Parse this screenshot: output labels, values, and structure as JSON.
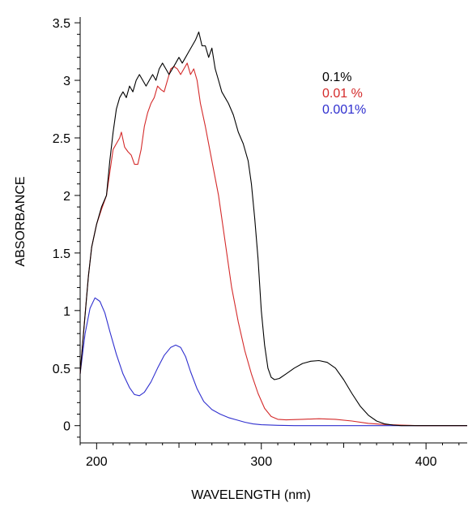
{
  "chart_data": {
    "type": "line",
    "title": "",
    "xlabel": "WAVELENGTH (nm)",
    "ylabel": "ABSORBANCE",
    "xlim": [
      190,
      425
    ],
    "ylim": [
      -0.15,
      3.55
    ],
    "x_ticks": [
      200,
      300,
      400
    ],
    "y_ticks": [
      0,
      0.5,
      1,
      1.5,
      2,
      2.5,
      3,
      3.5
    ],
    "x_tick_labels": [
      "200",
      "300",
      "400"
    ],
    "y_tick_labels": [
      "0",
      "0.5",
      "1",
      "1.5",
      "2",
      "2.5",
      "3",
      "3.5"
    ],
    "grid": false,
    "legend_position": "top-right",
    "series": [
      {
        "name": "0.1%",
        "color": "#000000",
        "points": [
          [
            190,
            0.45
          ],
          [
            192,
            0.8
          ],
          [
            195,
            1.3
          ],
          [
            197,
            1.55
          ],
          [
            200,
            1.75
          ],
          [
            203,
            1.9
          ],
          [
            206,
            2.0
          ],
          [
            208,
            2.3
          ],
          [
            210,
            2.55
          ],
          [
            212,
            2.75
          ],
          [
            214,
            2.85
          ],
          [
            216,
            2.9
          ],
          [
            218,
            2.85
          ],
          [
            220,
            2.95
          ],
          [
            222,
            2.9
          ],
          [
            224,
            3.0
          ],
          [
            226,
            3.05
          ],
          [
            228,
            3.0
          ],
          [
            230,
            2.95
          ],
          [
            232,
            3.0
          ],
          [
            234,
            3.05
          ],
          [
            236,
            3.0
          ],
          [
            238,
            3.1
          ],
          [
            240,
            3.15
          ],
          [
            242,
            3.1
          ],
          [
            244,
            3.05
          ],
          [
            246,
            3.1
          ],
          [
            248,
            3.15
          ],
          [
            250,
            3.2
          ],
          [
            252,
            3.15
          ],
          [
            254,
            3.2
          ],
          [
            256,
            3.25
          ],
          [
            258,
            3.3
          ],
          [
            260,
            3.35
          ],
          [
            262,
            3.42
          ],
          [
            264,
            3.3
          ],
          [
            266,
            3.3
          ],
          [
            268,
            3.2
          ],
          [
            270,
            3.28
          ],
          [
            272,
            3.1
          ],
          [
            274,
            3.0
          ],
          [
            276,
            2.9
          ],
          [
            278,
            2.85
          ],
          [
            280,
            2.8
          ],
          [
            283,
            2.7
          ],
          [
            286,
            2.55
          ],
          [
            289,
            2.45
          ],
          [
            292,
            2.3
          ],
          [
            294,
            2.1
          ],
          [
            296,
            1.8
          ],
          [
            298,
            1.45
          ],
          [
            300,
            1.0
          ],
          [
            302,
            0.7
          ],
          [
            304,
            0.5
          ],
          [
            306,
            0.42
          ],
          [
            308,
            0.4
          ],
          [
            311,
            0.41
          ],
          [
            315,
            0.45
          ],
          [
            320,
            0.5
          ],
          [
            325,
            0.54
          ],
          [
            330,
            0.56
          ],
          [
            335,
            0.565
          ],
          [
            340,
            0.55
          ],
          [
            345,
            0.5
          ],
          [
            350,
            0.4
          ],
          [
            355,
            0.28
          ],
          [
            360,
            0.17
          ],
          [
            365,
            0.09
          ],
          [
            370,
            0.04
          ],
          [
            375,
            0.015
          ],
          [
            380,
            0.005
          ],
          [
            385,
            0.0
          ],
          [
            390,
            0.0
          ],
          [
            400,
            0.0
          ],
          [
            410,
            0.0
          ],
          [
            425,
            0.0
          ]
        ]
      },
      {
        "name": "0.01 %",
        "color": "#d42a2a",
        "points": [
          [
            190,
            0.45
          ],
          [
            192,
            0.8
          ],
          [
            195,
            1.3
          ],
          [
            197,
            1.55
          ],
          [
            200,
            1.75
          ],
          [
            203,
            1.88
          ],
          [
            206,
            2.0
          ],
          [
            208,
            2.2
          ],
          [
            210,
            2.4
          ],
          [
            212,
            2.45
          ],
          [
            214,
            2.5
          ],
          [
            215,
            2.55
          ],
          [
            217,
            2.42
          ],
          [
            219,
            2.38
          ],
          [
            221,
            2.35
          ],
          [
            223,
            2.27
          ],
          [
            225,
            2.27
          ],
          [
            227,
            2.4
          ],
          [
            229,
            2.6
          ],
          [
            231,
            2.72
          ],
          [
            233,
            2.8
          ],
          [
            235,
            2.85
          ],
          [
            237,
            2.95
          ],
          [
            239,
            2.92
          ],
          [
            241,
            2.9
          ],
          [
            243,
            3.0
          ],
          [
            245,
            3.1
          ],
          [
            247,
            3.12
          ],
          [
            249,
            3.1
          ],
          [
            251,
            3.05
          ],
          [
            253,
            3.1
          ],
          [
            255,
            3.15
          ],
          [
            257,
            3.05
          ],
          [
            259,
            3.1
          ],
          [
            261,
            3.0
          ],
          [
            263,
            2.8
          ],
          [
            266,
            2.6
          ],
          [
            270,
            2.3
          ],
          [
            274,
            2.0
          ],
          [
            278,
            1.6
          ],
          [
            282,
            1.2
          ],
          [
            286,
            0.9
          ],
          [
            290,
            0.65
          ],
          [
            294,
            0.45
          ],
          [
            298,
            0.28
          ],
          [
            302,
            0.15
          ],
          [
            306,
            0.08
          ],
          [
            310,
            0.055
          ],
          [
            315,
            0.05
          ],
          [
            325,
            0.055
          ],
          [
            335,
            0.06
          ],
          [
            345,
            0.055
          ],
          [
            355,
            0.04
          ],
          [
            365,
            0.02
          ],
          [
            375,
            0.01
          ],
          [
            385,
            0.005
          ],
          [
            395,
            0.0
          ],
          [
            410,
            0.0
          ],
          [
            425,
            0.0
          ]
        ]
      },
      {
        "name": "0.001%",
        "color": "#2f2fcf",
        "points": [
          [
            190,
            0.45
          ],
          [
            193,
            0.8
          ],
          [
            196,
            1.02
          ],
          [
            199,
            1.11
          ],
          [
            202,
            1.08
          ],
          [
            205,
            0.98
          ],
          [
            208,
            0.82
          ],
          [
            212,
            0.62
          ],
          [
            216,
            0.45
          ],
          [
            220,
            0.33
          ],
          [
            223,
            0.27
          ],
          [
            226,
            0.26
          ],
          [
            229,
            0.29
          ],
          [
            233,
            0.38
          ],
          [
            237,
            0.5
          ],
          [
            241,
            0.61
          ],
          [
            245,
            0.68
          ],
          [
            248,
            0.7
          ],
          [
            251,
            0.68
          ],
          [
            254,
            0.6
          ],
          [
            257,
            0.47
          ],
          [
            261,
            0.32
          ],
          [
            265,
            0.21
          ],
          [
            270,
            0.14
          ],
          [
            275,
            0.1
          ],
          [
            280,
            0.07
          ],
          [
            285,
            0.05
          ],
          [
            290,
            0.03
          ],
          [
            295,
            0.015
          ],
          [
            300,
            0.008
          ],
          [
            310,
            0.003
          ],
          [
            320,
            0.0
          ],
          [
            340,
            0.0
          ],
          [
            380,
            0.0
          ],
          [
            425,
            0.0
          ]
        ]
      }
    ]
  }
}
